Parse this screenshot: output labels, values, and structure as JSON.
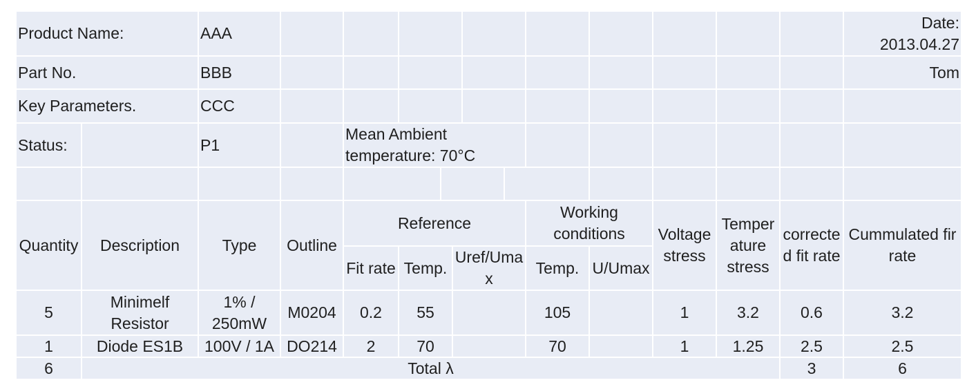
{
  "header": {
    "product_name_label": "Product Name:",
    "product_name": "AAA",
    "date_label": "Date:",
    "date": "2013.04.27",
    "part_no_label": "Part No.",
    "part_no": "BBB",
    "author": "Tom",
    "key_parameters_label": "Key Parameters.",
    "key_parameters": "CCC",
    "status_label": "Status:",
    "status": "P1",
    "ambient": "Mean Ambient temperature: 70°C"
  },
  "table": {
    "columns": {
      "quantity": "Quantity",
      "description": "Description",
      "type": "Type",
      "outline": "Outline",
      "reference": "Reference",
      "fit_rate": "Fit rate",
      "ref_temp": "Temp.",
      "uref_umax": "Uref/Umax",
      "working_conditions": "Working conditions",
      "work_temp": "Temp.",
      "u_umax": "U/Umax",
      "voltage_stress": "Voltage stress",
      "temperature_stress": "Temperature stress",
      "corrected_fit_rate": "corrected fit rate",
      "cummulated_fir_rate": "Cummulated fir rate"
    },
    "rows": [
      [
        5,
        "Minimelf Resistor",
        "1% / 250mW",
        "M0204",
        0.2,
        55,
        null,
        105,
        null,
        1,
        3.2,
        0.6,
        3.2
      ],
      [
        1,
        "Diode ES1B",
        "100V / 1A",
        "DO214",
        2,
        70,
        null,
        70,
        null,
        1,
        1.25,
        2.5,
        2.5
      ]
    ],
    "total": {
      "quantity": 6,
      "label": "Total λ",
      "corrected_fit_rate": 3,
      "cummulated_fir_rate": 6
    }
  }
}
